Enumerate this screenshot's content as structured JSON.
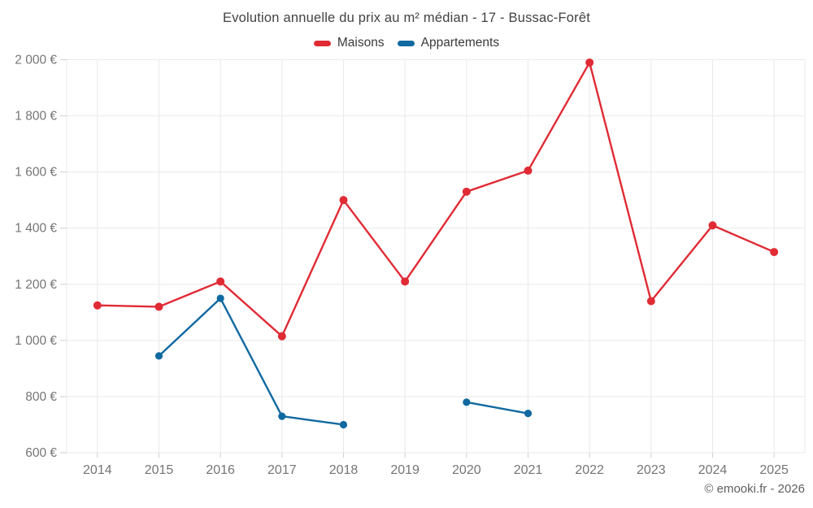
{
  "title": "Evolution annuelle du prix au m² médian - 17 - Bussac-Forêt",
  "legend": {
    "items": [
      {
        "label": "Maisons",
        "color": "#e02b35"
      },
      {
        "label": "Appartements",
        "color": "#1069a0"
      }
    ]
  },
  "watermark": "© emooki.fr - 2026",
  "colors": {
    "grid": "#e9e9e9",
    "tick": "#cfcfcf",
    "axis_label": "#757575",
    "title_text": "#424242",
    "maisons": "#e02b35",
    "appartements": "#1069a0"
  },
  "chart_data": {
    "type": "line",
    "title": "Evolution annuelle du prix au m² médian - 17 - Bussac-Forêt",
    "x": [
      2014,
      2015,
      2016,
      2017,
      2018,
      2019,
      2020,
      2021,
      2022,
      2023,
      2024,
      2025
    ],
    "series": [
      {
        "name": "Maisons",
        "color": "#e02b35",
        "values": [
          1125,
          1120,
          1210,
          1015,
          1500,
          1210,
          1530,
          1605,
          1990,
          1140,
          1410,
          1315
        ]
      },
      {
        "name": "Appartements",
        "color": "#1069a0",
        "values": [
          null,
          945,
          1150,
          730,
          700,
          null,
          780,
          740,
          null,
          null,
          null,
          null
        ]
      }
    ],
    "xlabel": "",
    "ylabel": "",
    "ylim": [
      600,
      2000
    ],
    "ytick_step": 200,
    "ytick_labels": [
      "600 €",
      "800 €",
      "1 000 €",
      "1 200 €",
      "1 400 €",
      "1 600 €",
      "1 800 €",
      "2 000 €"
    ],
    "grid": true,
    "legend_position": "top",
    "unit": "€"
  }
}
